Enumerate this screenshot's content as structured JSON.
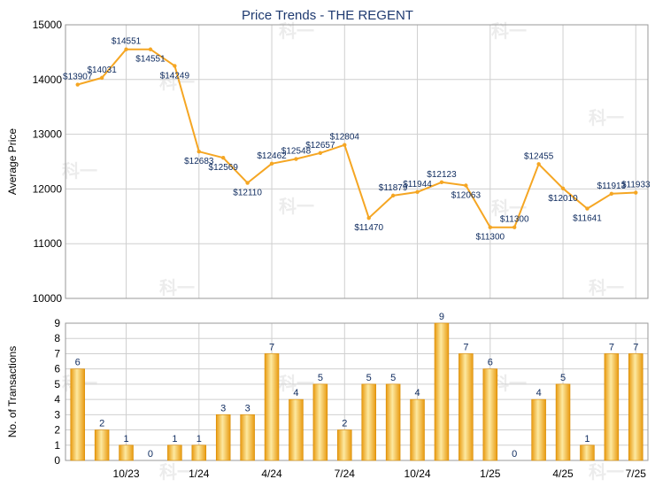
{
  "title": "Price Trends - THE REGENT",
  "watermark_text": "科一",
  "colors": {
    "line": "#f5a623",
    "bar_light": "#fde9a0",
    "bar_dark": "#e89a10",
    "grid": "#cfcfcf",
    "title": "#1f3a70",
    "label": "#0d2a5e"
  },
  "chart_data": [
    {
      "type": "line",
      "title": "Price Trends - THE REGENT",
      "ylabel": "Average Price",
      "ylim": [
        10000,
        15000
      ],
      "yticks": [
        10000,
        11000,
        12000,
        13000,
        14000,
        15000
      ],
      "ytick_labels": [
        "10000",
        "11000",
        "12000",
        "13000",
        "14000",
        "15000"
      ],
      "grid": true,
      "series": [
        {
          "points": [
            {
              "slot": 0,
              "value": 13907,
              "label": "$13907"
            },
            {
              "slot": 1,
              "value": 14031,
              "label": "$14031"
            },
            {
              "slot": 2,
              "value": 14551,
              "label": "$14551"
            },
            {
              "slot": 3,
              "value": 14551,
              "label": "$14551"
            },
            {
              "slot": 4,
              "value": 14249,
              "label": "$14249"
            },
            {
              "slot": 5,
              "value": 12683,
              "label": "$12683"
            },
            {
              "slot": 6,
              "value": 12569,
              "label": "$12569"
            },
            {
              "slot": 7,
              "value": 12110,
              "label": "$12110"
            },
            {
              "slot": 8,
              "value": 12462,
              "label": "$12462"
            },
            {
              "slot": 9,
              "value": 12548,
              "label": "$12548"
            },
            {
              "slot": 10,
              "value": 12657,
              "label": "$12657"
            },
            {
              "slot": 11,
              "value": 12804,
              "label": "$12804"
            },
            {
              "slot": 12,
              "value": 11470,
              "label": "$11470"
            },
            {
              "slot": 13,
              "value": 11879,
              "label": "$11879"
            },
            {
              "slot": 14,
              "value": 11944,
              "label": "$11944"
            },
            {
              "slot": 15,
              "value": 12123,
              "label": "$12123"
            },
            {
              "slot": 16,
              "value": 12063,
              "label": "$12063"
            },
            {
              "slot": 17,
              "value": 11300,
              "label": "$11300"
            },
            {
              "slot": 18,
              "value": 11300,
              "label": "$11300"
            },
            {
              "slot": 19,
              "value": 12455,
              "label": "$12455"
            },
            {
              "slot": 20,
              "value": 12010,
              "label": "$12010"
            },
            {
              "slot": 21,
              "value": 11641,
              "label": "$11641"
            },
            {
              "slot": 22,
              "value": 11913,
              "label": "$11913"
            },
            {
              "slot": 23,
              "value": 11933,
              "label": "$11933"
            }
          ]
        }
      ]
    },
    {
      "type": "bar",
      "ylabel": "No. of Transactions",
      "ylim": [
        0,
        9
      ],
      "yticks": [
        0,
        1,
        2,
        3,
        4,
        5,
        6,
        7,
        8,
        9
      ],
      "grid": true,
      "values": [
        6,
        2,
        1,
        0,
        1,
        1,
        3,
        3,
        7,
        4,
        5,
        2,
        5,
        5,
        4,
        9,
        7,
        6,
        0,
        4,
        5,
        1,
        7,
        7
      ],
      "x_tick_labels": [
        {
          "slot": 2,
          "label": "10/23"
        },
        {
          "slot": 5,
          "label": "1/24"
        },
        {
          "slot": 8,
          "label": "4/24"
        },
        {
          "slot": 11,
          "label": "7/24"
        },
        {
          "slot": 14,
          "label": "10/24"
        },
        {
          "slot": 17,
          "label": "1/25"
        },
        {
          "slot": 20,
          "label": "4/25"
        },
        {
          "slot": 23,
          "label": "7/25"
        }
      ]
    }
  ]
}
